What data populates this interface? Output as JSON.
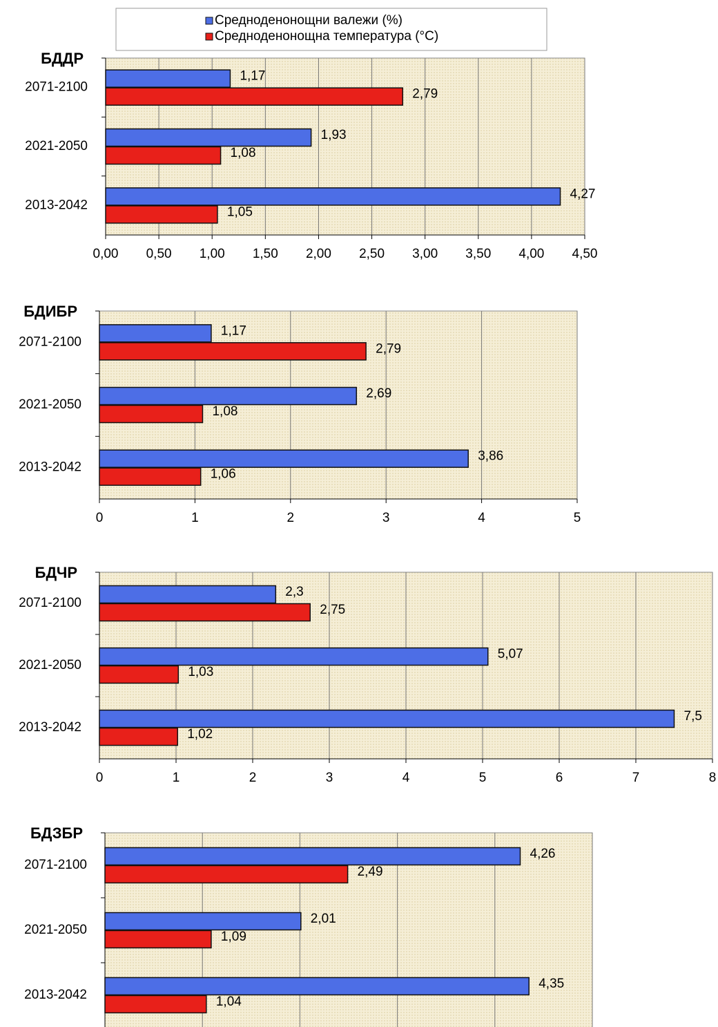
{
  "chart_data": [
    {
      "type": "bar",
      "orientation": "horizontal",
      "title": "БДДР",
      "legend": "top",
      "categories": [
        "2071-2100",
        "2021-2050",
        "2013-2042"
      ],
      "series": [
        {
          "name": "Средноденонощни валежи (%)",
          "color": "#4d6ee6",
          "values": [
            1.17,
            1.93,
            4.27
          ],
          "value_labels": [
            "1,17",
            "1,93",
            "4,27"
          ]
        },
        {
          "name": "Средноденонощна температура (°C)",
          "color": "#e8201a",
          "values": [
            2.79,
            1.08,
            1.05
          ],
          "value_labels": [
            "2,79",
            "1,08",
            "1,05"
          ]
        }
      ],
      "xlim": [
        0,
        4.5
      ],
      "xticks": [
        {
          "value": 0,
          "label": "0,00"
        },
        {
          "value": 0.5,
          "label": "0,50"
        },
        {
          "value": 1,
          "label": "1,00"
        },
        {
          "value": 1.5,
          "label": "1,50"
        },
        {
          "value": 2,
          "label": "2,00"
        },
        {
          "value": 2.5,
          "label": "2,50"
        },
        {
          "value": 3,
          "label": "3,00"
        },
        {
          "value": 3.5,
          "label": "3,50"
        },
        {
          "value": 4,
          "label": "4,00"
        },
        {
          "value": 4.5,
          "label": "4,50"
        }
      ],
      "grid": true
    },
    {
      "type": "bar",
      "orientation": "horizontal",
      "title": "БДИБР",
      "categories": [
        "2071-2100",
        "2021-2050",
        "2013-2042"
      ],
      "series": [
        {
          "name": "Средноденонощни валежи (%)",
          "color": "#4d6ee6",
          "values": [
            1.17,
            2.69,
            3.86
          ],
          "value_labels": [
            "1,17",
            "2,69",
            "3,86"
          ]
        },
        {
          "name": "Средноденонощна температура (°C)",
          "color": "#e8201a",
          "values": [
            2.79,
            1.08,
            1.06
          ],
          "value_labels": [
            "2,79",
            "1,08",
            "1,06"
          ]
        }
      ],
      "xlim": [
        0,
        5
      ],
      "xticks": [
        0,
        1,
        2,
        3,
        4,
        5
      ],
      "grid": true
    },
    {
      "type": "bar",
      "orientation": "horizontal",
      "title": "БДЧР",
      "categories": [
        "2071-2100",
        "2021-2050",
        "2013-2042"
      ],
      "series": [
        {
          "name": "Средноденонощни валежи (%)",
          "color": "#4d6ee6",
          "values": [
            2.3,
            5.07,
            7.5
          ],
          "value_labels": [
            "2,3",
            "5,07",
            "7,5"
          ]
        },
        {
          "name": "Средноденонощна температура (°C)",
          "color": "#e8201a",
          "values": [
            2.75,
            1.03,
            1.02
          ],
          "value_labels": [
            "2,75",
            "1,03",
            "1,02"
          ]
        }
      ],
      "xlim": [
        0,
        8
      ],
      "xticks": [
        0,
        1,
        2,
        3,
        4,
        5,
        6,
        7,
        8
      ],
      "grid": true
    },
    {
      "type": "bar",
      "orientation": "horizontal",
      "title": "БДЗБР",
      "categories": [
        "2071-2100",
        "2021-2050",
        "2013-2042"
      ],
      "series": [
        {
          "name": "Средноденонощни валежи (%)",
          "color": "#4d6ee6",
          "values": [
            4.26,
            2.01,
            4.35
          ],
          "value_labels": [
            "4,26",
            "2,01",
            "4,35"
          ]
        },
        {
          "name": "Средноденонощна температура (°C)",
          "color": "#e8201a",
          "values": [
            2.49,
            1.09,
            1.04
          ],
          "value_labels": [
            "2,49",
            "1,09",
            "1,04"
          ]
        }
      ],
      "xlim": [
        0,
        5
      ],
      "xticks": [
        0,
        1,
        2,
        3,
        4,
        5
      ],
      "grid": true
    }
  ]
}
